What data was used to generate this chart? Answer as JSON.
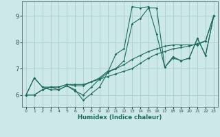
{
  "xlabel": "Humidex (Indice chaleur)",
  "background_color": "#cce8e8",
  "grid_color": "#aacccc",
  "line_color": "#1a6b5a",
  "spine_color": "#556666",
  "tick_color": "#334444",
  "xlim": [
    -0.5,
    23.5
  ],
  "ylim": [
    5.55,
    9.55
  ],
  "yticks": [
    6,
    7,
    8,
    9
  ],
  "xticks": [
    0,
    1,
    2,
    3,
    4,
    5,
    6,
    7,
    8,
    9,
    10,
    11,
    12,
    13,
    14,
    15,
    16,
    17,
    18,
    19,
    20,
    21,
    22,
    23
  ],
  "series": [
    [
      6.0,
      6.65,
      6.3,
      6.2,
      6.2,
      6.35,
      6.2,
      5.8,
      6.05,
      6.3,
      6.85,
      7.55,
      7.75,
      9.35,
      9.3,
      9.35,
      8.3,
      7.05,
      7.4,
      7.3,
      7.4,
      8.15,
      7.5,
      9.0
    ],
    [
      6.0,
      6.65,
      6.3,
      6.3,
      6.2,
      6.35,
      6.15,
      6.0,
      6.3,
      6.6,
      6.85,
      7.0,
      7.3,
      8.7,
      8.9,
      9.3,
      9.3,
      7.05,
      7.45,
      7.3,
      7.4,
      8.15,
      7.5,
      9.0
    ],
    [
      6.0,
      6.0,
      6.2,
      6.3,
      6.3,
      6.4,
      6.35,
      6.35,
      6.5,
      6.6,
      6.7,
      6.8,
      6.9,
      7.0,
      7.2,
      7.4,
      7.55,
      7.65,
      7.75,
      7.8,
      7.85,
      7.95,
      8.05,
      9.0
    ],
    [
      6.0,
      6.0,
      6.2,
      6.3,
      6.3,
      6.4,
      6.4,
      6.4,
      6.5,
      6.65,
      6.9,
      7.0,
      7.15,
      7.35,
      7.5,
      7.65,
      7.75,
      7.85,
      7.9,
      7.9,
      7.9,
      7.9,
      8.05,
      9.0
    ]
  ]
}
